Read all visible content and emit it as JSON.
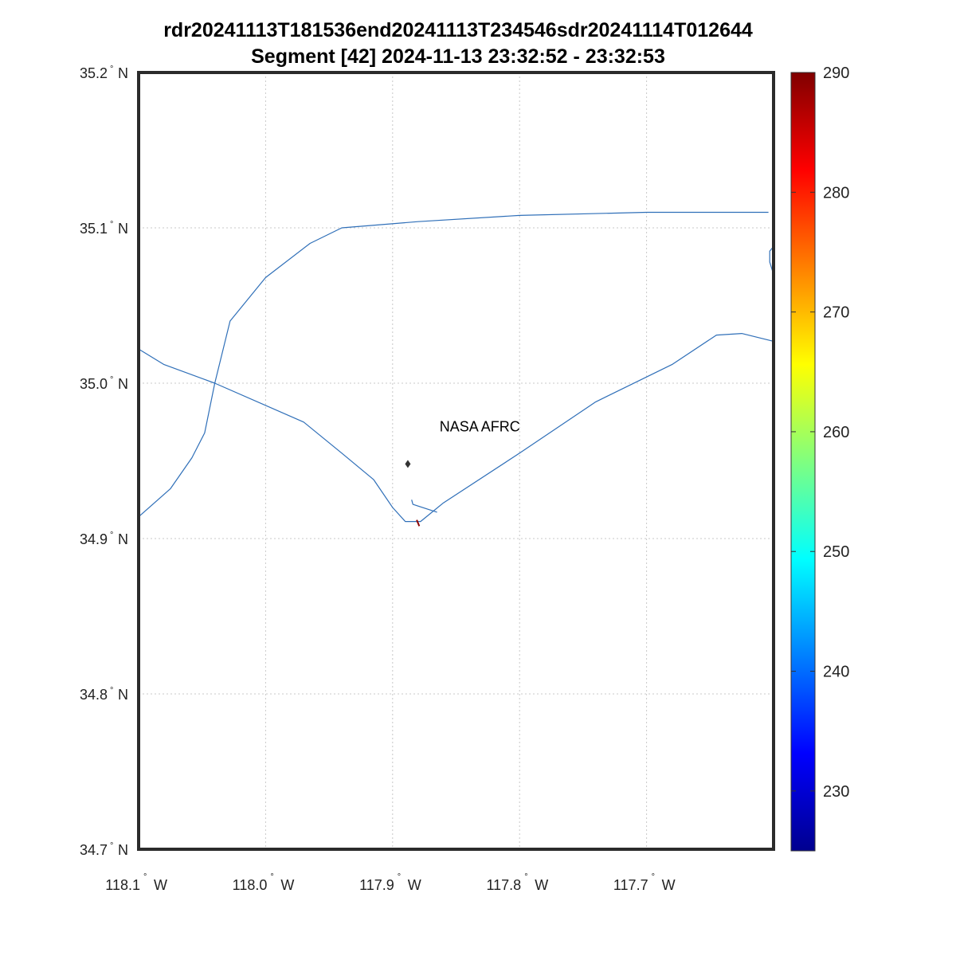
{
  "title": {
    "line1": "rdr20241113T181536end20241113T234546sdr20241114T012644",
    "line2": "Segment [42] 2024-11-13 23:32:52 - 23:32:53"
  },
  "map": {
    "lon_range": [
      -118.1,
      -117.6
    ],
    "lat_range": [
      34.7,
      35.2
    ],
    "lon_ticks": [
      {
        "value": -118.1,
        "label": "118.1",
        "suffix": "W"
      },
      {
        "value": -118.0,
        "label": "118.0",
        "suffix": "W"
      },
      {
        "value": -117.9,
        "label": "117.9",
        "suffix": "W"
      },
      {
        "value": -117.8,
        "label": "117.8",
        "suffix": "W"
      },
      {
        "value": -117.7,
        "label": "117.7",
        "suffix": "W"
      }
    ],
    "lat_ticks": [
      {
        "value": 35.2,
        "label": "35.2",
        "suffix": "N"
      },
      {
        "value": 35.1,
        "label": "35.1",
        "suffix": "N"
      },
      {
        "value": 35.0,
        "label": "35.0",
        "suffix": "N"
      },
      {
        "value": 34.9,
        "label": "34.9",
        "suffix": "N"
      },
      {
        "value": 34.8,
        "label": "34.8",
        "suffix": "N"
      },
      {
        "value": 34.7,
        "label": "34.7",
        "suffix": "N"
      }
    ],
    "degree_symbol": "°",
    "grid": true,
    "track_color": "#2f6fb8",
    "label": {
      "text": "NASA AFRC",
      "lon": -117.863,
      "lat": 34.972
    },
    "marker": {
      "name": "diamond-icon",
      "lon": -117.888,
      "lat": 34.948,
      "color": "#333333"
    }
  },
  "chart_data": {
    "type": "line",
    "xlabel": "",
    "ylabel": "",
    "xlim": [
      -118.1,
      -117.6
    ],
    "ylim": [
      34.7,
      35.2
    ],
    "grid": true,
    "series": [
      {
        "points": [
          [
            -118.1,
            34.914
          ],
          [
            -118.075,
            34.932
          ],
          [
            -118.058,
            34.952
          ],
          [
            -118.048,
            34.968
          ],
          [
            -118.04,
            35.0
          ],
          [
            -118.028,
            35.04
          ],
          [
            -118.0,
            35.068
          ],
          [
            -117.965,
            35.09
          ],
          [
            -117.94,
            35.1
          ],
          [
            -117.88,
            35.104
          ],
          [
            -117.8,
            35.108
          ],
          [
            -117.7,
            35.11
          ],
          [
            -117.604,
            35.11
          ]
        ]
      },
      {
        "points": [
          [
            -118.1,
            35.022
          ],
          [
            -118.08,
            35.012
          ],
          [
            -118.04,
            35.0
          ],
          [
            -117.97,
            34.975
          ],
          [
            -117.94,
            34.955
          ],
          [
            -117.915,
            34.938
          ],
          [
            -117.9,
            34.92
          ],
          [
            -117.89,
            34.911
          ],
          [
            -117.878,
            34.911
          ],
          [
            -117.86,
            34.923
          ],
          [
            -117.8,
            34.955
          ],
          [
            -117.74,
            34.988
          ],
          [
            -117.68,
            35.012
          ],
          [
            -117.645,
            35.031
          ],
          [
            -117.625,
            35.032
          ],
          [
            -117.6,
            35.027
          ]
        ]
      },
      {
        "points": [
          [
            -117.885,
            34.925
          ],
          [
            -117.884,
            34.922
          ],
          [
            -117.865,
            34.917
          ]
        ]
      },
      {
        "points": [
          [
            -117.6,
            35.088
          ],
          [
            -117.603,
            35.085
          ],
          [
            -117.603,
            35.078
          ],
          [
            -117.6,
            35.07
          ]
        ]
      },
      {
        "points": [
          [
            -117.881,
            34.912
          ],
          [
            -117.879,
            34.908
          ]
        ],
        "color": "#8b0000"
      }
    ]
  },
  "colorbar": {
    "min": 225,
    "max": 290,
    "ticks": [
      290,
      280,
      270,
      260,
      250,
      240,
      230
    ],
    "colormap": "jet"
  }
}
